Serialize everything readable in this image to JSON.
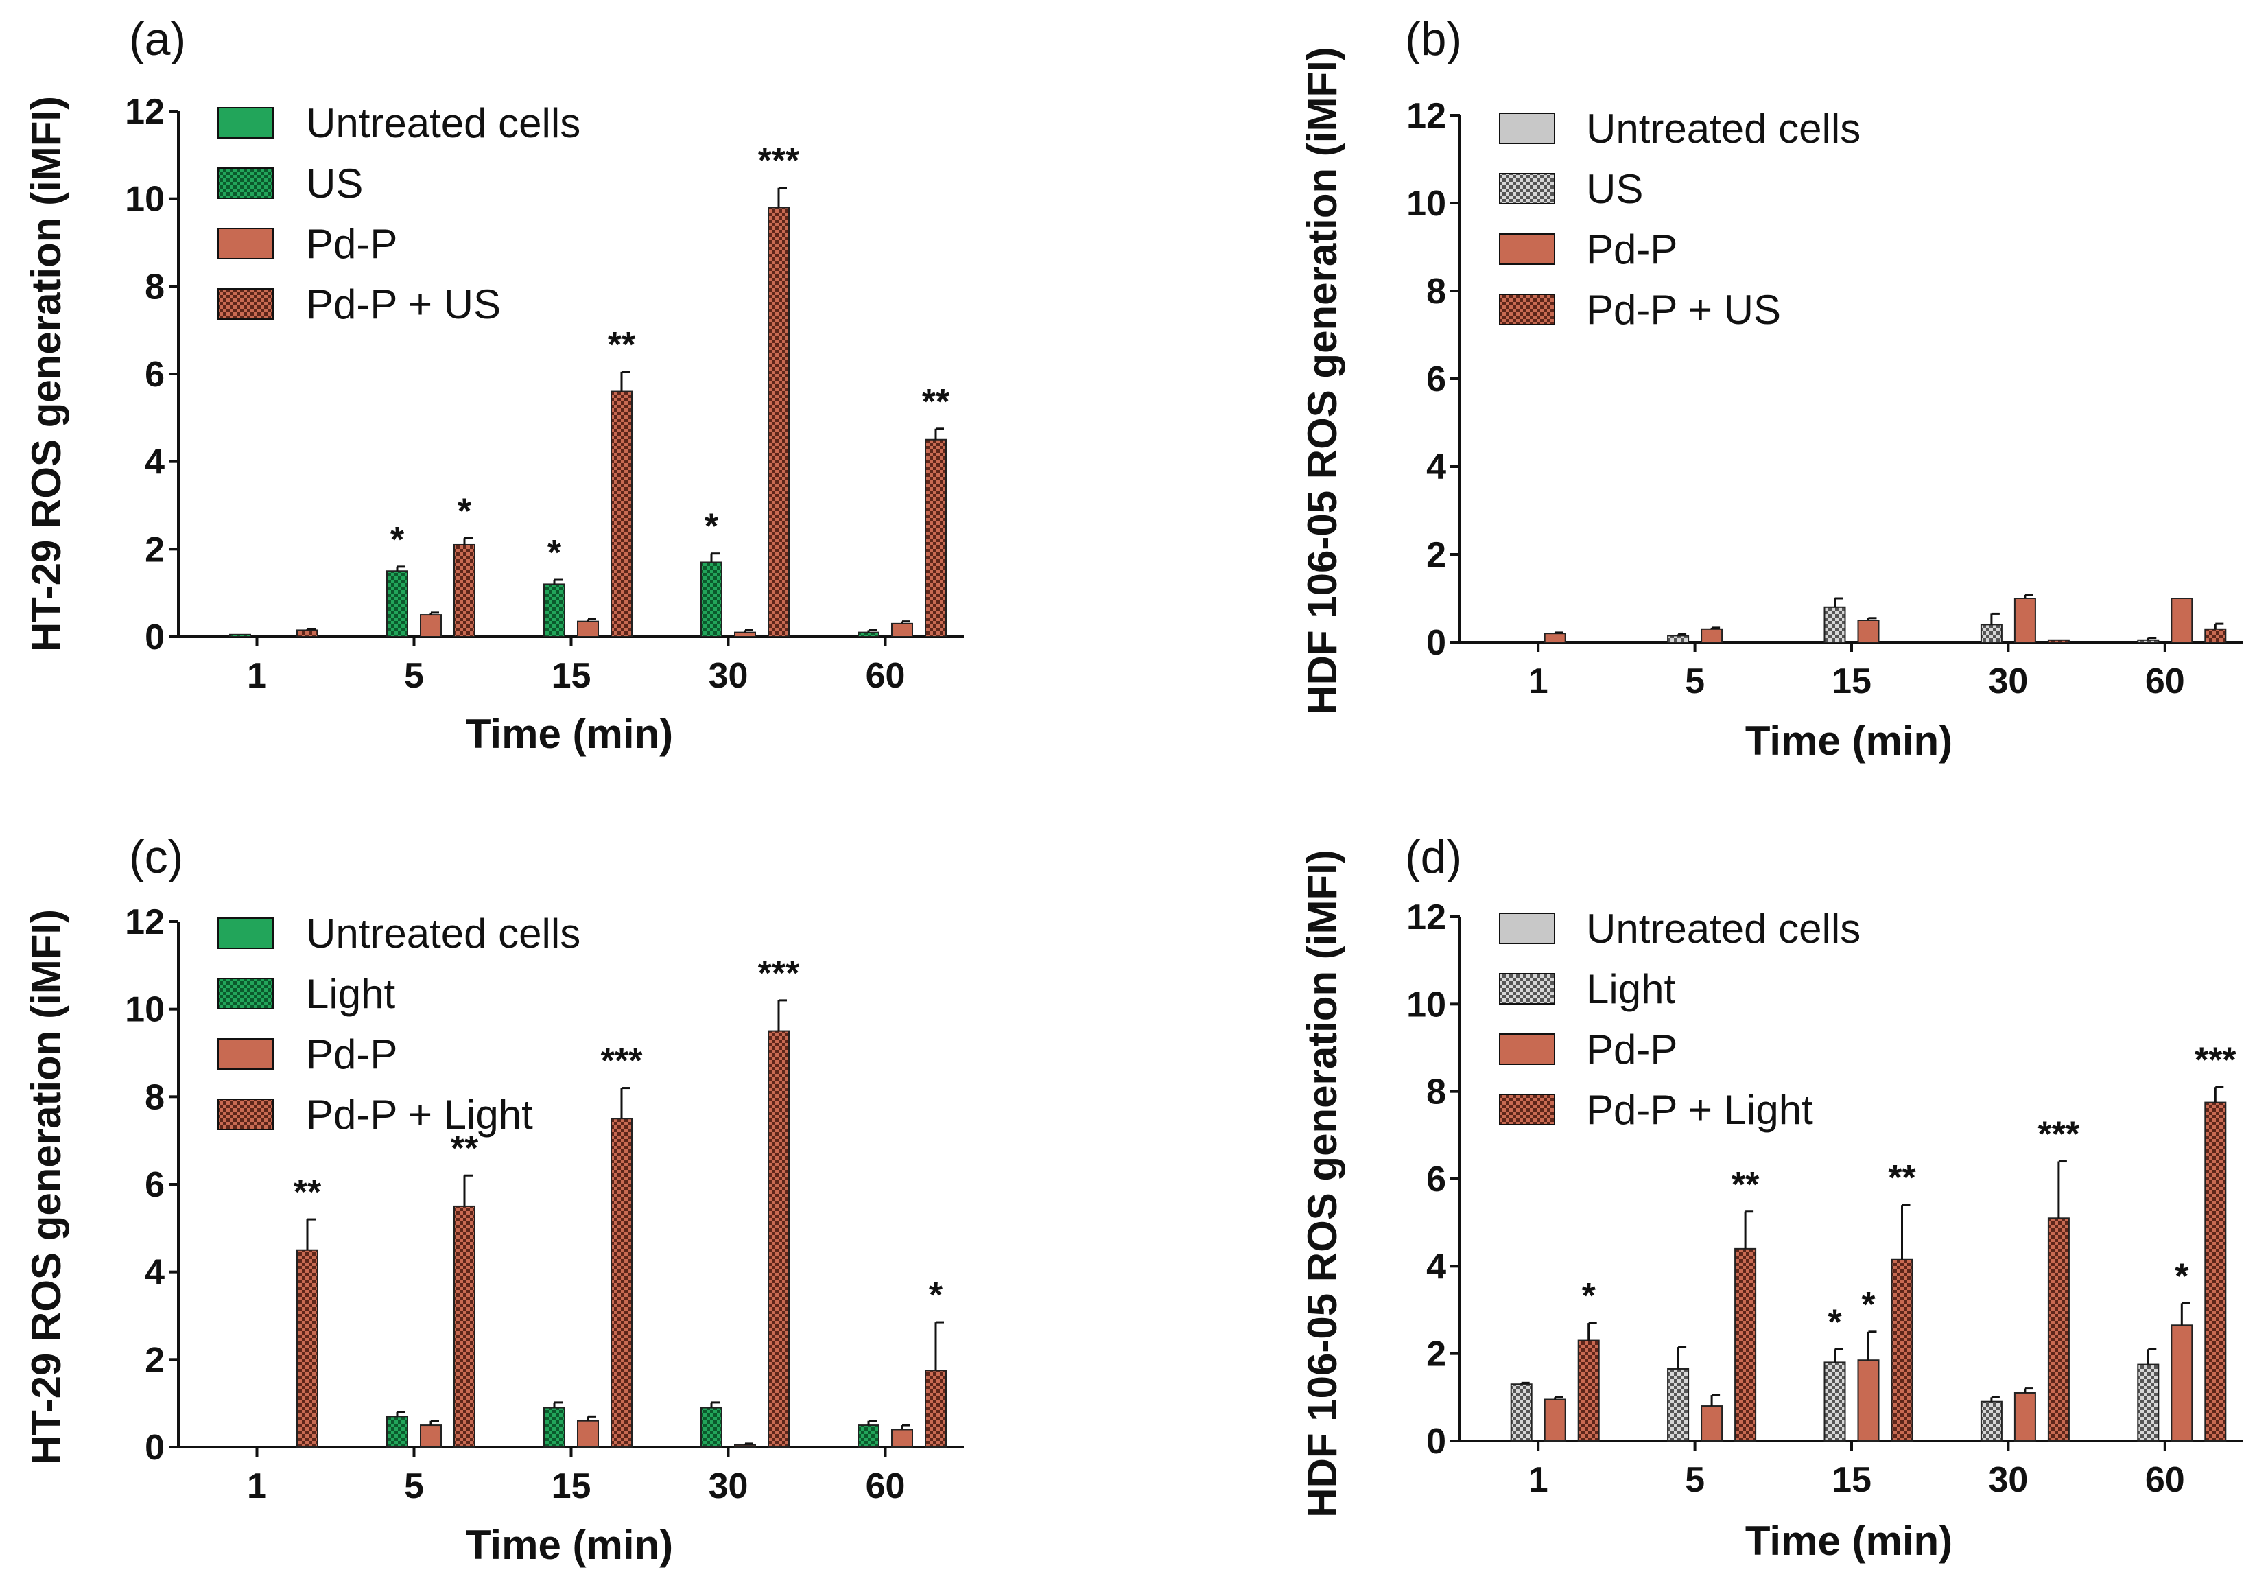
{
  "colors": {
    "green": "#22a55a",
    "green_dark": "#0b5a2c",
    "brick": "#c86a52",
    "brick_dark": "#5e261a",
    "gray": "#c8c8c8",
    "gray_dark": "#555555",
    "axis": "#111111"
  },
  "chart_data": [
    {
      "type": "bar",
      "panel": "(a)",
      "ylabel": "HT-29 ROS generation (iMFI)",
      "xlabel": "Time (min)",
      "categories": [
        "1",
        "5",
        "15",
        "30",
        "60"
      ],
      "ylim": [
        0,
        12
      ],
      "yticks": [
        "0",
        "2",
        "4",
        "6",
        "8",
        "10",
        "12"
      ],
      "legend_position": "top-left",
      "series": [
        {
          "name": "Untreated cells",
          "style": "solid-green",
          "values": [
            0,
            0,
            0,
            0,
            0
          ],
          "errors": [
            0,
            0,
            0,
            0,
            0
          ],
          "stars": [
            "",
            "",
            "",
            "",
            ""
          ]
        },
        {
          "name": "US",
          "style": "hatch-green",
          "values": [
            0.05,
            1.5,
            1.2,
            1.7,
            0.1
          ],
          "errors": [
            0,
            0.1,
            0.1,
            0.2,
            0.05
          ],
          "stars": [
            "",
            "*",
            "*",
            "*",
            ""
          ]
        },
        {
          "name": "Pd-P",
          "style": "solid-brick",
          "values": [
            0,
            0.5,
            0.35,
            0.1,
            0.3
          ],
          "errors": [
            0,
            0.05,
            0.05,
            0.05,
            0.05
          ],
          "stars": [
            "",
            "",
            "",
            "",
            ""
          ]
        },
        {
          "name": "Pd-P + US",
          "style": "hatch-brick",
          "values": [
            0.15,
            2.1,
            5.6,
            9.8,
            4.5
          ],
          "errors": [
            0.03,
            0.15,
            0.45,
            0.45,
            0.25
          ],
          "stars": [
            "",
            "*",
            "**",
            "***",
            "**"
          ]
        }
      ]
    },
    {
      "type": "bar",
      "panel": "(b)",
      "ylabel": "HDF 106-05 ROS generation (iMFI)",
      "xlabel": "Time (min)",
      "categories": [
        "1",
        "5",
        "15",
        "30",
        "60"
      ],
      "ylim": [
        0,
        12
      ],
      "yticks": [
        "0",
        "2",
        "4",
        "6",
        "8",
        "10",
        "12"
      ],
      "legend_position": "top-left",
      "series": [
        {
          "name": "Untreated cells",
          "style": "solid-gray",
          "values": [
            0,
            0,
            0,
            0,
            0
          ],
          "errors": [
            0,
            0,
            0,
            0,
            0
          ],
          "stars": [
            "",
            "",
            "",
            "",
            ""
          ]
        },
        {
          "name": "US",
          "style": "hatch-gray",
          "values": [
            0,
            0.15,
            0.8,
            0.4,
            0.05
          ],
          "errors": [
            0,
            0.03,
            0.2,
            0.25,
            0.05
          ],
          "stars": [
            "",
            "",
            "",
            "",
            ""
          ]
        },
        {
          "name": "Pd-P",
          "style": "solid-brick",
          "values": [
            0.2,
            0.3,
            0.5,
            1.0,
            1.0
          ],
          "errors": [
            0.02,
            0.03,
            0.05,
            0.08,
            0
          ],
          "stars": [
            "",
            "",
            "",
            "",
            ""
          ]
        },
        {
          "name": "Pd-P + US",
          "style": "hatch-brick",
          "values": [
            0,
            0,
            0,
            0.05,
            0.3
          ],
          "errors": [
            0,
            0,
            0,
            0,
            0.12
          ],
          "stars": [
            "",
            "",
            "",
            "",
            ""
          ]
        }
      ]
    },
    {
      "type": "bar",
      "panel": "(c)",
      "ylabel": "HT-29 ROS generation (iMFI)",
      "xlabel": "Time (min)",
      "categories": [
        "1",
        "5",
        "15",
        "30",
        "60"
      ],
      "ylim": [
        0,
        12
      ],
      "yticks": [
        "0",
        "2",
        "4",
        "6",
        "8",
        "10",
        "12"
      ],
      "legend_position": "top-left",
      "series": [
        {
          "name": "Untreated cells",
          "style": "solid-green",
          "values": [
            0,
            0,
            0,
            0,
            0
          ],
          "errors": [
            0,
            0,
            0,
            0,
            0
          ],
          "stars": [
            "",
            "",
            "",
            "",
            ""
          ]
        },
        {
          "name": "Light",
          "style": "hatch-green",
          "values": [
            0,
            0.7,
            0.9,
            0.9,
            0.5
          ],
          "errors": [
            0,
            0.1,
            0.12,
            0.12,
            0.1
          ],
          "stars": [
            "",
            "",
            "",
            "",
            ""
          ]
        },
        {
          "name": "Pd-P",
          "style": "solid-brick",
          "values": [
            0,
            0.5,
            0.6,
            0.05,
            0.4
          ],
          "errors": [
            0,
            0.1,
            0.1,
            0.03,
            0.1
          ],
          "stars": [
            "",
            "",
            "",
            "",
            ""
          ]
        },
        {
          "name": "Pd-P + Light",
          "style": "hatch-brick",
          "values": [
            4.5,
            5.5,
            7.5,
            9.5,
            1.75
          ],
          "errors": [
            0.7,
            0.7,
            0.7,
            0.7,
            1.1
          ],
          "stars": [
            "**",
            "**",
            "***",
            "***",
            "*"
          ]
        }
      ]
    },
    {
      "type": "bar",
      "panel": "(d)",
      "ylabel": "HDF 106-05 ROS generation (iMFI)",
      "xlabel": "Time (min)",
      "categories": [
        "1",
        "5",
        "15",
        "30",
        "60"
      ],
      "ylim": [
        0,
        12
      ],
      "yticks": [
        "0",
        "2",
        "4",
        "6",
        "8",
        "10",
        "12"
      ],
      "legend_position": "top-left",
      "series": [
        {
          "name": "Untreated cells",
          "style": "solid-gray",
          "values": [
            0,
            0,
            0,
            0,
            0
          ],
          "errors": [
            0,
            0,
            0,
            0,
            0
          ],
          "stars": [
            "",
            "",
            "",
            "",
            ""
          ]
        },
        {
          "name": "Light",
          "style": "hatch-gray",
          "values": [
            1.3,
            1.65,
            1.8,
            0.9,
            1.75
          ],
          "errors": [
            0.03,
            0.5,
            0.3,
            0.1,
            0.35
          ],
          "stars": [
            "",
            "",
            "*",
            "",
            ""
          ]
        },
        {
          "name": "Pd-P",
          "style": "solid-brick",
          "values": [
            0.95,
            0.8,
            1.85,
            1.1,
            2.65
          ],
          "errors": [
            0.05,
            0.25,
            0.65,
            0.1,
            0.5
          ],
          "stars": [
            "",
            "",
            "*",
            "",
            "*"
          ]
        },
        {
          "name": "Pd-P + Light",
          "style": "hatch-brick",
          "values": [
            2.3,
            4.4,
            4.15,
            5.1,
            7.75
          ],
          "errors": [
            0.4,
            0.85,
            1.25,
            1.3,
            0.35
          ],
          "stars": [
            "*",
            "**",
            "**",
            "***",
            "***"
          ]
        }
      ]
    }
  ]
}
